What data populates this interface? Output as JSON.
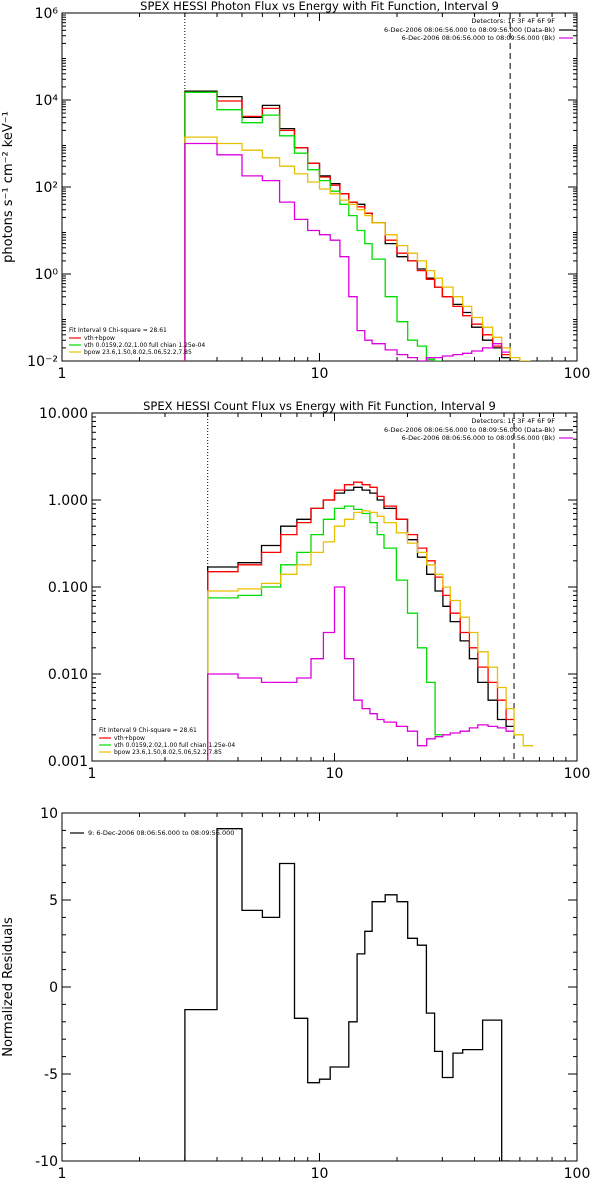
{
  "colors": {
    "data": "#000000",
    "total": "#ff0000",
    "vth": "#00dd00",
    "bpow": "#e8c000",
    "background": "#dd00dd"
  },
  "chart_data": [
    {
      "type": "line",
      "title": "SPEX HESSI Photon Flux vs Energy with Fit Function, Interval 9",
      "xlabel": "",
      "ylabel": "photons s⁻¹ cm⁻² keV⁻¹",
      "xscale": "log",
      "yscale": "log",
      "xlim": [
        1,
        100
      ],
      "ylim": [
        0.01,
        1000000
      ],
      "xticks": [
        1,
        10,
        100
      ],
      "xtick_labels": [
        "1",
        "10",
        "100"
      ],
      "yticks": [
        0.01,
        1,
        100,
        10000,
        1000000
      ],
      "ytick_labels": [
        "10⁻²",
        "10⁰",
        "10²",
        "10⁴",
        "10⁶"
      ],
      "vlines": [
        {
          "x": 3.0,
          "style": "dotted"
        },
        {
          "x": 55,
          "style": "dashed"
        }
      ],
      "header_text": [
        "Detectors: 1F 3F 4F 6F 9F",
        "6-Dec-2006 08:06:56.000 to 08:09:56.000 (Data-Bk)",
        "6-Dec-2006 08:06:56.000 to 08:09:56.000 (Bk)"
      ],
      "legend_title": "Fit Interval 9   Chi-square = 28.61",
      "legend": [
        {
          "label": "vth+bpow",
          "color": "#ff0000"
        },
        {
          "label": "vth 0.0159,2.02,1.00  full chian 1.25e-04",
          "color": "#00dd00"
        },
        {
          "label": "bpow 23.6,1.50,8.02,5.06,52.2,7.85",
          "color": "#e8c000"
        }
      ],
      "grid": false,
      "series": [
        {
          "style": "data",
          "edges": [
            3,
            4,
            5,
            6,
            7,
            8,
            9,
            10,
            11,
            12,
            13,
            14,
            15,
            16,
            18,
            20,
            22,
            24,
            26,
            28,
            30,
            33,
            36,
            39,
            43,
            47,
            51,
            55,
            60
          ],
          "values": [
            16000,
            12000,
            4000,
            7500,
            2200,
            800,
            350,
            180,
            120,
            70,
            45,
            40,
            25,
            15,
            5,
            2.5,
            2,
            1.3,
            0.8,
            0.5,
            0.3,
            0.2,
            0.13,
            0.06,
            0.03,
            0.02,
            0.012,
            0.008
          ]
        },
        {
          "style": "total",
          "edges": [
            3,
            4,
            5,
            6,
            7,
            8,
            9,
            10,
            11,
            12,
            13,
            14,
            15,
            16,
            18,
            20,
            22,
            24,
            26,
            28,
            30,
            33,
            36,
            39,
            43,
            47,
            51,
            55
          ],
          "values": [
            15000,
            9500,
            4200,
            6400,
            2000,
            800,
            350,
            170,
            110,
            70,
            45,
            35,
            25,
            15,
            6,
            3,
            2,
            1.2,
            0.75,
            0.5,
            0.3,
            0.18,
            0.11,
            0.07,
            0.04,
            0.022,
            0.014
          ]
        },
        {
          "style": "vth",
          "edges": [
            3,
            4,
            5,
            6,
            7,
            8,
            9,
            10,
            11,
            12,
            13,
            14,
            15,
            16,
            18,
            20,
            22,
            24,
            26,
            28,
            30
          ],
          "values": [
            15000,
            6000,
            3000,
            4500,
            1500,
            600,
            250,
            140,
            80,
            40,
            22,
            10,
            5,
            2.2,
            0.3,
            0.08,
            0.03,
            0.022,
            0.011,
            0.01
          ]
        },
        {
          "style": "bpow",
          "edges": [
            3,
            4,
            5,
            6,
            7,
            8,
            9,
            10,
            11,
            12,
            13,
            14,
            15,
            16,
            18,
            20,
            22,
            24,
            26,
            28,
            30,
            33,
            36,
            39,
            43,
            47,
            51,
            55,
            60,
            66
          ],
          "values": [
            1400,
            1000,
            700,
            470,
            300,
            200,
            130,
            90,
            70,
            50,
            40,
            30,
            22,
            15,
            8,
            4.5,
            3,
            2,
            1.2,
            0.8,
            0.5,
            0.3,
            0.18,
            0.1,
            0.06,
            0.035,
            0.02,
            0.012,
            0.01
          ]
        },
        {
          "style": "background",
          "edges": [
            3,
            4,
            5,
            6,
            7,
            8,
            9,
            10,
            11,
            12,
            13,
            14,
            15,
            16,
            18,
            20,
            22,
            24,
            26,
            28,
            30,
            33,
            36,
            39,
            43,
            47,
            51,
            55
          ],
          "values": [
            1000,
            550,
            180,
            140,
            45,
            18,
            10,
            8,
            6,
            2.5,
            0.3,
            0.05,
            0.03,
            0.025,
            0.018,
            0.014,
            0.012,
            0.01,
            0.012,
            0.012,
            0.013,
            0.014,
            0.015,
            0.017,
            0.02,
            0.025,
            0.016
          ]
        }
      ]
    },
    {
      "type": "line",
      "title": "SPEX HESSI Count Flux vs Energy with Fit Function, Interval 9",
      "xlabel": "",
      "ylabel": "",
      "xscale": "log",
      "yscale": "log",
      "xlim": [
        1,
        100
      ],
      "ylim": [
        0.001,
        10
      ],
      "xticks": [
        1,
        10,
        100
      ],
      "xtick_labels": [
        "1",
        "10",
        "100"
      ],
      "yticks": [
        0.001,
        0.01,
        0.1,
        1,
        10
      ],
      "ytick_labels": [
        "0.001",
        "0.010",
        "0.100",
        "1.000",
        "10.000"
      ],
      "vlines": [
        {
          "x": 3.0,
          "style": "dotted"
        },
        {
          "x": 55,
          "style": "dashed"
        }
      ],
      "header_text": [
        "Detectors: 1F 3F 4F 6F 9F",
        "6-Dec-2006 08:06:56.000 to 08:09:56.000 (Data-Bk)",
        "6-Dec-2006 08:06:56.000 to 08:09:56.000 (Bk)"
      ],
      "legend_title": "Fit Interval 9   Chi-square = 28.61",
      "legend": [
        {
          "label": "vth+bpow",
          "color": "#ff0000"
        },
        {
          "label": "vth 0.0159,2.02,1.00  full chian 1.25e-04",
          "color": "#00dd00"
        },
        {
          "label": "bpow 23.6,1.50,8.02,5.06,52.2,7.85",
          "color": "#e8c000"
        }
      ],
      "grid": false,
      "series": [
        {
          "style": "data",
          "edges": [
            3,
            4,
            5,
            6,
            7,
            8,
            9,
            10,
            11,
            12,
            13,
            14,
            15,
            16,
            18,
            20,
            22,
            24,
            26,
            28,
            30,
            33,
            36,
            39,
            43,
            47,
            51,
            55
          ],
          "values": [
            0.17,
            0.19,
            0.3,
            0.5,
            0.6,
            0.8,
            1.0,
            1.2,
            1.3,
            1.4,
            1.3,
            1.2,
            1.0,
            0.8,
            0.6,
            0.35,
            0.22,
            0.14,
            0.09,
            0.06,
            0.04,
            0.024,
            0.015,
            0.008,
            0.005,
            0.003,
            0.0025
          ]
        },
        {
          "style": "total",
          "edges": [
            3,
            4,
            5,
            6,
            7,
            8,
            9,
            10,
            11,
            12,
            13,
            14,
            15,
            16,
            18,
            20,
            22,
            24,
            26,
            28,
            30,
            33,
            36,
            39,
            43,
            47,
            51,
            55
          ],
          "values": [
            0.15,
            0.18,
            0.25,
            0.4,
            0.55,
            0.8,
            1.0,
            1.3,
            1.5,
            1.6,
            1.5,
            1.4,
            1.1,
            0.85,
            0.6,
            0.4,
            0.28,
            0.2,
            0.13,
            0.08,
            0.05,
            0.03,
            0.02,
            0.012,
            0.008,
            0.005,
            0.003
          ]
        },
        {
          "style": "vth",
          "edges": [
            3,
            4,
            5,
            6,
            7,
            8,
            9,
            10,
            11,
            12,
            13,
            14,
            15,
            16,
            18,
            20,
            22,
            24,
            26,
            28
          ],
          "values": [
            0.075,
            0.08,
            0.1,
            0.18,
            0.25,
            0.4,
            0.6,
            0.8,
            0.85,
            0.78,
            0.7,
            0.55,
            0.4,
            0.28,
            0.12,
            0.05,
            0.02,
            0.008,
            0.002
          ]
        },
        {
          "style": "bpow",
          "edges": [
            3,
            4,
            5,
            6,
            7,
            8,
            9,
            10,
            11,
            12,
            13,
            14,
            15,
            16,
            18,
            20,
            22,
            24,
            26,
            28,
            30,
            33,
            36,
            39,
            43,
            47,
            51,
            55,
            60,
            66
          ],
          "values": [
            0.09,
            0.095,
            0.11,
            0.14,
            0.18,
            0.25,
            0.33,
            0.5,
            0.6,
            0.72,
            0.75,
            0.72,
            0.65,
            0.55,
            0.42,
            0.32,
            0.25,
            0.18,
            0.14,
            0.1,
            0.07,
            0.045,
            0.03,
            0.018,
            0.012,
            0.007,
            0.004,
            0.002,
            0.0015
          ]
        },
        {
          "style": "background",
          "edges": [
            3,
            4,
            5,
            6,
            7,
            8,
            9,
            10,
            11,
            12,
            13,
            14,
            15,
            16,
            18,
            20,
            22,
            24,
            26,
            28,
            30,
            33,
            36,
            39,
            43,
            47,
            51,
            55
          ],
          "values": [
            0.01,
            0.009,
            0.008,
            0.008,
            0.009,
            0.015,
            0.03,
            0.1,
            0.015,
            0.005,
            0.004,
            0.0035,
            0.003,
            0.0028,
            0.0025,
            0.0022,
            0.0015,
            0.0018,
            0.0019,
            0.002,
            0.0021,
            0.0022,
            0.0024,
            0.0026,
            0.0025,
            0.0024,
            0.0022
          ]
        }
      ]
    },
    {
      "type": "line",
      "title": "",
      "xlabel": "",
      "ylabel": "Normalized Residuals",
      "xscale": "log",
      "yscale": "linear",
      "xlim": [
        1,
        100
      ],
      "ylim": [
        -10,
        10
      ],
      "xticks": [
        1,
        10,
        100
      ],
      "xtick_labels": [
        "1",
        "10",
        "100"
      ],
      "yticks": [
        -10,
        -5,
        0,
        5,
        10
      ],
      "ytick_labels": [
        "-10",
        "-5",
        "0",
        "5",
        "10"
      ],
      "vlines": [],
      "header_text": [],
      "legend_title": "",
      "legend": [
        {
          "label": "9:  6-Dec-2006 08:06:56.000 to 08:09:56.000",
          "color": "#000000"
        }
      ],
      "grid": false,
      "series": [
        {
          "style": "data",
          "edges": [
            3,
            4,
            5,
            6,
            7,
            8,
            9,
            10,
            11,
            12,
            13,
            14,
            15,
            16,
            18,
            20,
            22,
            24,
            26,
            28,
            30,
            33,
            36,
            39,
            43,
            47,
            51,
            55
          ],
          "values": [
            -1.3,
            9.1,
            4.4,
            4.0,
            7.1,
            -1.8,
            -5.5,
            -5.3,
            -4.6,
            -4.6,
            -2.0,
            1.9,
            3.2,
            4.9,
            5.3,
            4.9,
            2.8,
            2.4,
            -1.5,
            -3.7,
            -5.2,
            -3.8,
            -3.6,
            -3.6,
            -1.9,
            -1.9,
            -10
          ]
        }
      ]
    }
  ]
}
